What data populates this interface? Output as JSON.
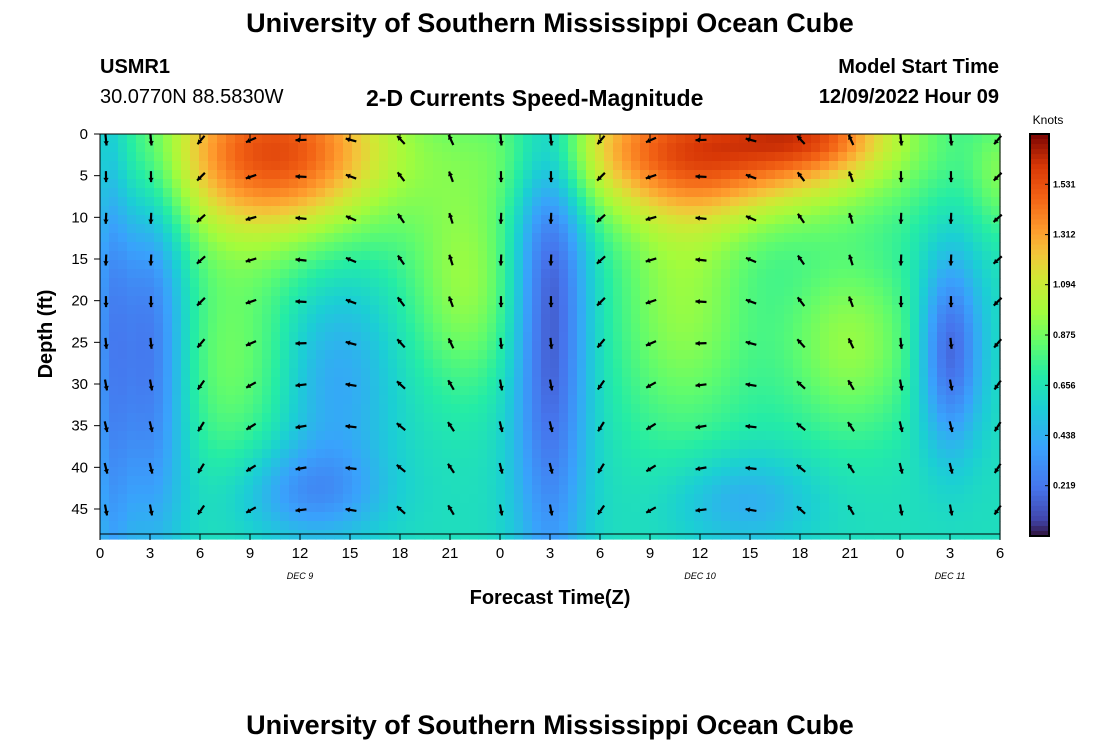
{
  "header": {
    "title": "University of Southern Mississippi Ocean Cube",
    "station_id": "USMR1",
    "coordinates": "30.0770N  88.5830W",
    "subtitle": "2-D Currents Speed-Magnitude",
    "model_start_label": "Model Start Time",
    "model_start_value": "12/09/2022 Hour 09"
  },
  "footer": {
    "title": "University of Southern Mississippi Ocean Cube"
  },
  "colors": {
    "low": "#3b4cc0",
    "mid": "#9bf04a",
    "high": "#b01a0a",
    "arrow": "#000000"
  },
  "chart_data": {
    "type": "heatmap",
    "xlabel": "Forecast Time(Z)",
    "ylabel": "Depth (ft)",
    "colorbar_label": "Knots",
    "x_range": [
      0,
      54
    ],
    "y_range": [
      0,
      48
    ],
    "x_tick_labels": [
      "0",
      "3",
      "6",
      "9",
      "12",
      "15",
      "18",
      "21",
      "0",
      "3",
      "6",
      "9",
      "12",
      "15",
      "18",
      "21",
      "0",
      "3",
      "6"
    ],
    "y_ticks": [
      0,
      5,
      10,
      15,
      20,
      25,
      30,
      35,
      40,
      45
    ],
    "day_labels": [
      {
        "text": "DEC 9",
        "x": 12
      },
      {
        "text": "DEC 10",
        "x": 36
      },
      {
        "text": "DEC 11",
        "x": 51
      }
    ],
    "colorbar_ticks": [
      "0.219",
      "0.438",
      "0.656",
      "0.875",
      "1.094",
      "1.312",
      "1.531"
    ],
    "colorbar_max": 1.75,
    "grid": false,
    "vector_arrows": true
  }
}
